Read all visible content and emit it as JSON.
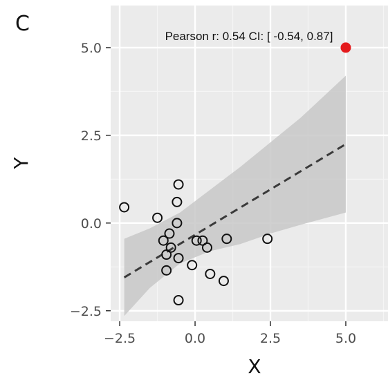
{
  "chart_data": {
    "type": "scatter",
    "panel_label": "C",
    "annotation": "Pearson r: 0.54 CI: [ -0.54, 0.87]",
    "xlabel": "X",
    "ylabel": "Y",
    "xlim": [
      -2.8,
      6.4
    ],
    "ylim": [
      -2.8,
      6.2
    ],
    "x_ticks": [
      -2.5,
      0.0,
      2.5,
      5.0
    ],
    "x_tick_labels": [
      "−2.5",
      "0.0",
      "2.5",
      "5.0"
    ],
    "y_ticks": [
      -2.5,
      0.0,
      2.5,
      5.0
    ],
    "y_tick_labels": [
      "−2.5",
      "0.0",
      "2.5",
      "5.0"
    ],
    "grid": true,
    "points": [
      {
        "x": -2.35,
        "y": 0.45
      },
      {
        "x": -1.25,
        "y": 0.15
      },
      {
        "x": -0.55,
        "y": 1.1
      },
      {
        "x": -0.6,
        "y": 0.6
      },
      {
        "x": -0.6,
        "y": 0.0
      },
      {
        "x": -0.85,
        "y": -0.3
      },
      {
        "x": -1.05,
        "y": -0.5
      },
      {
        "x": -0.95,
        "y": -0.9
      },
      {
        "x": -0.8,
        "y": -0.7
      },
      {
        "x": -0.55,
        "y": -1.0
      },
      {
        "x": -0.95,
        "y": -1.35
      },
      {
        "x": -0.55,
        "y": -2.2
      },
      {
        "x": -0.1,
        "y": -1.2
      },
      {
        "x": 0.05,
        "y": -0.5
      },
      {
        "x": 0.25,
        "y": -0.5
      },
      {
        "x": 0.4,
        "y": -0.7
      },
      {
        "x": 0.5,
        "y": -1.45
      },
      {
        "x": 0.95,
        "y": -1.65
      },
      {
        "x": 1.05,
        "y": -0.45
      },
      {
        "x": 2.4,
        "y": -0.45
      }
    ],
    "outlier": {
      "x": 5.0,
      "y": 5.0
    },
    "fit_line": {
      "x": [
        -2.35,
        5.0
      ],
      "y": [
        -1.55,
        2.25
      ]
    },
    "confidence_band": {
      "x": [
        -2.35,
        -1.5,
        -0.5,
        0.5,
        1.5,
        2.5,
        3.5,
        5.0
      ],
      "upper": [
        -0.45,
        -0.15,
        0.3,
        0.95,
        1.6,
        2.3,
        3.0,
        4.2
      ],
      "lower": [
        -2.65,
        -1.85,
        -1.15,
        -0.8,
        -0.6,
        -0.3,
        -0.05,
        0.3
      ]
    },
    "colors": {
      "panel_background": "#ebebeb",
      "grid_major": "#ffffff",
      "grid_minor": "#f5f5f5",
      "band": "#c8c8c8",
      "fit_line": "#3a3a3a",
      "point_stroke": "#111111",
      "outlier": "#e41a1c"
    }
  }
}
